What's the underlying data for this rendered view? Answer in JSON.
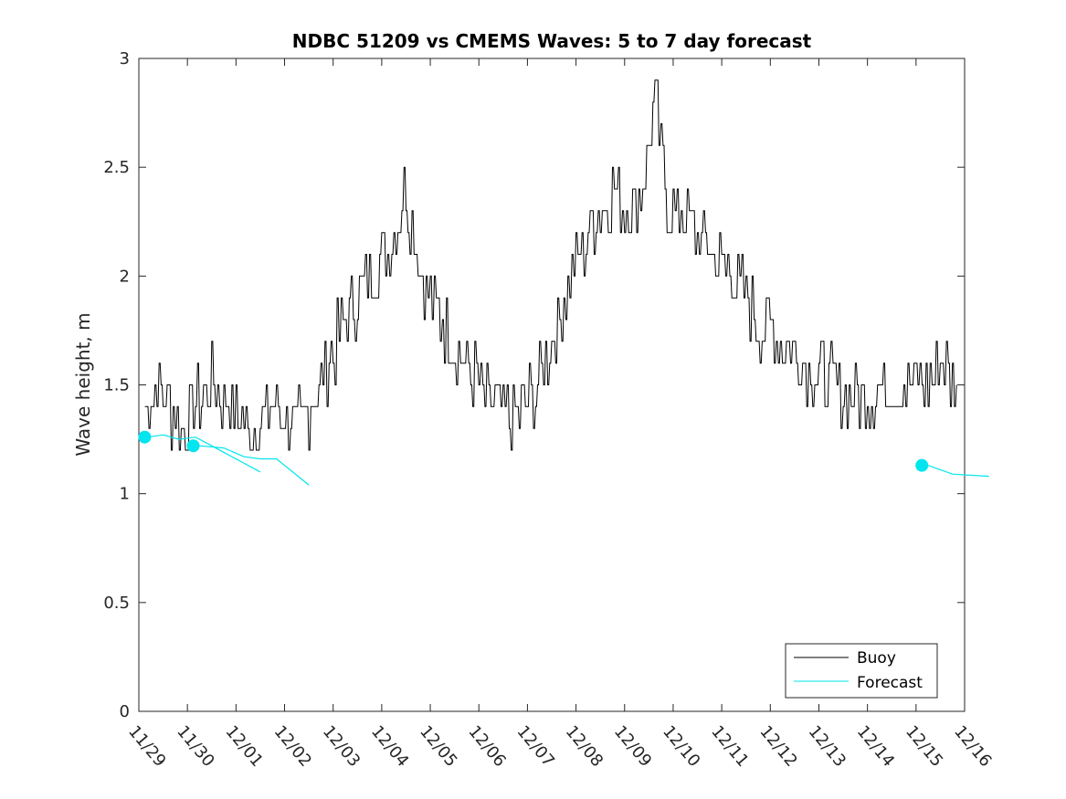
{
  "chart_data": {
    "type": "line",
    "title": "NDBC 51209 vs CMEMS Waves: 5 to 7 day forecast",
    "xlabel": "",
    "ylabel": "Wave height, m",
    "xlim": [
      "11/29",
      "12/16"
    ],
    "ylim": [
      0,
      3
    ],
    "x_tick_labels": [
      "11/29",
      "11/30",
      "12/01",
      "12/02",
      "12/03",
      "12/04",
      "12/05",
      "12/06",
      "12/07",
      "12/08",
      "12/09",
      "12/10",
      "12/11",
      "12/12",
      "12/13",
      "12/14",
      "12/15",
      "12/16"
    ],
    "y_ticks": [
      0,
      0.5,
      1,
      1.5,
      2,
      2.5,
      3
    ],
    "y_tick_labels": [
      "0",
      "0.5",
      "1",
      "1.5",
      "2",
      "2.5",
      "3"
    ],
    "grid": false,
    "legend_position": "bottom-right",
    "colors": {
      "buoy": "#000000",
      "forecast": "#00e5ee"
    },
    "series": [
      {
        "name": "Buoy",
        "day_values": [
          [
            "11/29",
            1.4
          ],
          [
            "11/29",
            1.5
          ],
          [
            "11/29",
            1.4
          ],
          [
            "11/29",
            1.3
          ],
          [
            "11/30",
            1.4
          ],
          [
            "11/30",
            1.5
          ],
          [
            "11/30",
            1.4
          ],
          [
            "12/01",
            1.3
          ],
          [
            "12/01",
            1.4
          ],
          [
            "12/02",
            1.3
          ],
          [
            "12/02",
            1.5
          ],
          [
            "12/03",
            1.8
          ],
          [
            "12/03",
            2.0
          ],
          [
            "12/04",
            2.1
          ],
          [
            "12/04",
            2.4
          ],
          [
            "12/04",
            2.0
          ],
          [
            "12/05",
            1.8
          ],
          [
            "12/05",
            1.6
          ],
          [
            "12/06",
            1.4
          ],
          [
            "12/06",
            1.35
          ],
          [
            "12/07",
            1.5
          ],
          [
            "12/07",
            1.9
          ],
          [
            "12/08",
            2.2
          ],
          [
            "12/08",
            2.4
          ],
          [
            "12/09",
            2.3
          ],
          [
            "12/09",
            2.4
          ],
          [
            "12/09",
            2.8
          ],
          [
            "12/09",
            2.3
          ],
          [
            "12/10",
            2.3
          ],
          [
            "12/10",
            2.2
          ],
          [
            "12/10",
            2.1
          ],
          [
            "12/11",
            2.0
          ],
          [
            "12/11",
            1.8
          ],
          [
            "12/12",
            1.7
          ],
          [
            "12/12",
            1.6
          ],
          [
            "12/13",
            1.5
          ],
          [
            "12/13",
            1.45
          ],
          [
            "12/14",
            1.5
          ],
          [
            "12/15",
            1.5
          ],
          [
            "12/15",
            1.6
          ],
          [
            "12/15",
            1.5
          ]
        ]
      },
      {
        "name": "Forecast",
        "segments": [
          {
            "x": [
              "11/29",
              "11/29",
              "11/29",
              "11/30",
              "11/30",
              "11/30",
              "12/01"
            ],
            "y": [
              1.26,
              1.27,
              1.25,
              1.26,
              1.22,
              1.18,
              1.1
            ]
          },
          {
            "x": [
              "11/30",
              "11/30",
              "12/01",
              "12/01",
              "12/01",
              "12/02"
            ],
            "y": [
              1.22,
              1.21,
              1.17,
              1.16,
              1.16,
              1.04
            ]
          },
          {
            "x": [
              "12/15",
              "12/15",
              "12/16"
            ],
            "y": [
              1.13,
              1.09,
              1.08
            ]
          }
        ],
        "markers": [
          {
            "x": "11/29",
            "y": 1.26
          },
          {
            "x": "11/30",
            "y": 1.22
          },
          {
            "x": "12/15",
            "y": 1.13
          }
        ]
      }
    ]
  }
}
